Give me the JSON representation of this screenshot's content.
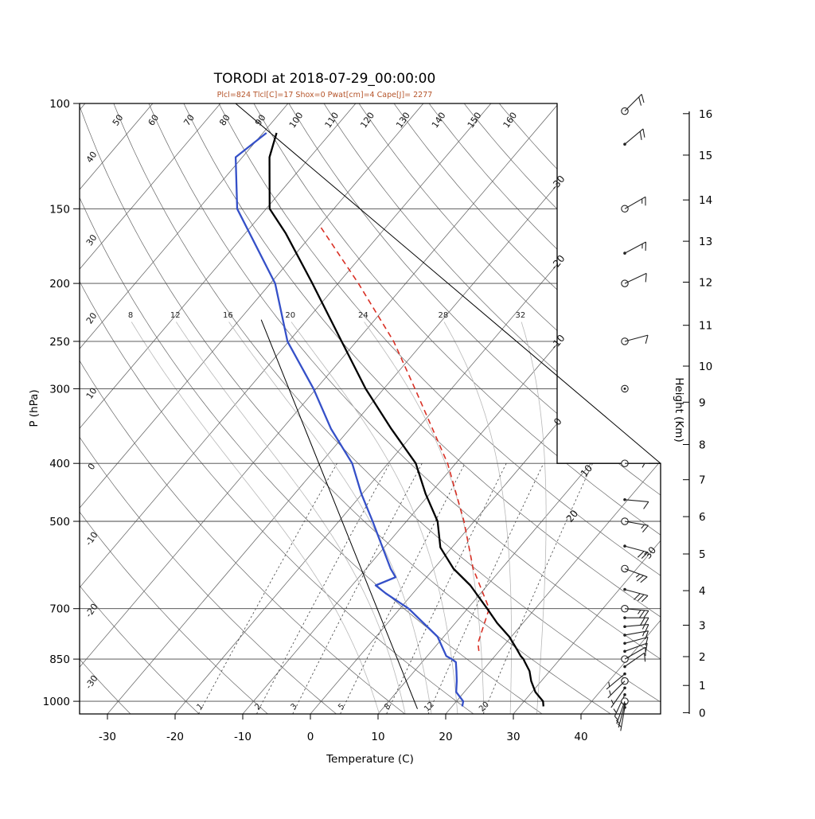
{
  "colors": {
    "temperature": "#000000",
    "dewpoint": "#3550c8",
    "parcel": "#d93025",
    "subtitle": "#b5542a",
    "background_lines": "#666666",
    "moist_adiabat": "#b8b8b8",
    "mixing": "#444444",
    "wind": "#222222",
    "axis": "#000000"
  },
  "chart_data": {
    "type": "skewt-logp",
    "title": "TORODI at 2018-07-29_00:00:00",
    "subtitle": "Plcl=824 Tlcl[C]=17 Shox=0 Pwat[cm]=4 Cape[J]= 2277",
    "xlabel": "Temperature (C)",
    "ylabel": "P (hPa)",
    "y2label": "Height (Km)",
    "pressure_range": [
      100,
      1050
    ],
    "pressure_ticks": [
      100,
      150,
      200,
      250,
      300,
      400,
      500,
      700,
      850,
      1000
    ],
    "temperature_ticks": [
      -30,
      -20,
      -10,
      0,
      10,
      20,
      30,
      40
    ],
    "height_ticks": [
      {
        "km": 16,
        "p": 104
      },
      {
        "km": 15,
        "p": 122
      },
      {
        "km": 14,
        "p": 145
      },
      {
        "km": 13,
        "p": 170
      },
      {
        "km": 12,
        "p": 199
      },
      {
        "km": 11,
        "p": 235
      },
      {
        "km": 10,
        "p": 275
      },
      {
        "km": 9,
        "p": 316
      },
      {
        "km": 8,
        "p": 372
      },
      {
        "km": 7,
        "p": 426
      },
      {
        "km": 6,
        "p": 491
      },
      {
        "km": 5,
        "p": 567
      },
      {
        "km": 4,
        "p": 653
      },
      {
        "km": 3,
        "p": 746
      },
      {
        "km": 2,
        "p": 842
      },
      {
        "km": 1,
        "p": 941
      },
      {
        "km": 0,
        "p": 1045
      }
    ],
    "background": {
      "isotherms": {
        "min": -120,
        "max": 40,
        "step": 10
      },
      "isotherm_labels": [
        -30,
        -20,
        -10,
        0,
        10,
        20,
        30
      ],
      "dry_adiabat_values": [
        -30,
        -20,
        -10,
        0,
        10,
        20,
        30,
        40,
        50,
        60,
        70,
        80,
        90,
        100,
        110,
        120,
        130,
        140,
        150,
        160
      ],
      "moist_adiabat_values": [
        8,
        12,
        16,
        20,
        24,
        28,
        32
      ],
      "mixing_ratio_values": [
        1,
        2,
        3,
        5,
        8,
        12,
        20
      ]
    },
    "series": {
      "temperature": [
        [
          1020,
          33.5
        ],
        [
          1000,
          32.8
        ],
        [
          965,
          30.5
        ],
        [
          925,
          28.5
        ],
        [
          890,
          27.0
        ],
        [
          860,
          25.2
        ],
        [
          850,
          24.6
        ],
        [
          840,
          23.8
        ],
        [
          820,
          22.5
        ],
        [
          780,
          19.7
        ],
        [
          740,
          16.2
        ],
        [
          700,
          12.9
        ],
        [
          640,
          7.5
        ],
        [
          600,
          2.9
        ],
        [
          553,
          -1.7
        ],
        [
          500,
          -5.4
        ],
        [
          450,
          -10.6
        ],
        [
          400,
          -15.9
        ],
        [
          350,
          -23.9
        ],
        [
          300,
          -32.7
        ],
        [
          250,
          -42.2
        ],
        [
          200,
          -53.8
        ],
        [
          165,
          -64.0
        ],
        [
          150,
          -69.5
        ],
        [
          123,
          -76.0
        ],
        [
          112,
          -78.0
        ]
      ],
      "dewpoint": [
        [
          1020,
          21.5
        ],
        [
          1000,
          21.0
        ],
        [
          965,
          18.8
        ],
        [
          925,
          17.5
        ],
        [
          890,
          16.2
        ],
        [
          860,
          15.0
        ],
        [
          850,
          14.0
        ],
        [
          840,
          12.8
        ],
        [
          780,
          9.1
        ],
        [
          700,
          1.3
        ],
        [
          660,
          -4.0
        ],
        [
          640,
          -6.5
        ],
        [
          620,
          -4.6
        ],
        [
          600,
          -6.4
        ],
        [
          550,
          -10.5
        ],
        [
          500,
          -15.0
        ],
        [
          450,
          -20.1
        ],
        [
          400,
          -25.3
        ],
        [
          350,
          -32.8
        ],
        [
          300,
          -40.4
        ],
        [
          250,
          -50.2
        ],
        [
          200,
          -59.3
        ],
        [
          150,
          -74.3
        ],
        [
          123,
          -81.0
        ],
        [
          112,
          -79.5
        ]
      ],
      "parcel": [
        [
          824,
          17.0
        ],
        [
          800,
          15.9
        ],
        [
          700,
          13.2
        ],
        [
          600,
          5.8
        ],
        [
          500,
          -1.5
        ],
        [
          400,
          -11.2
        ],
        [
          300,
          -25.4
        ],
        [
          250,
          -34.5
        ],
        [
          200,
          -47.0
        ],
        [
          160,
          -60.0
        ]
      ],
      "aux_line": [
        [
          1030,
          15.2
        ],
        [
          230,
          -56.8
        ]
      ]
    },
    "wind_barbs": [
      {
        "p": 103,
        "dir": 45,
        "spd": 20,
        "marker": "circle"
      },
      {
        "p": 117,
        "dir": 50,
        "spd": 20,
        "marker": "dot"
      },
      {
        "p": 150,
        "dir": 60,
        "spd": 15,
        "marker": "circle"
      },
      {
        "p": 178,
        "dir": 62,
        "spd": 15,
        "marker": "dot"
      },
      {
        "p": 200,
        "dir": 65,
        "spd": 10,
        "marker": "circle"
      },
      {
        "p": 250,
        "dir": 75,
        "spd": 10,
        "marker": "circle"
      },
      {
        "p": 300,
        "dir": 0,
        "spd": 0,
        "marker": "calm"
      },
      {
        "p": 400,
        "dir": 90,
        "spd": 5,
        "marker": "circle"
      },
      {
        "p": 460,
        "dir": 95,
        "spd": 10,
        "marker": "dot"
      },
      {
        "p": 500,
        "dir": 100,
        "spd": 15,
        "marker": "circle"
      },
      {
        "p": 550,
        "dir": 105,
        "spd": 20,
        "marker": "dot"
      },
      {
        "p": 600,
        "dir": 110,
        "spd": 25,
        "marker": "circle"
      },
      {
        "p": 650,
        "dir": 105,
        "spd": 30,
        "marker": "dot"
      },
      {
        "p": 700,
        "dir": 95,
        "spd": 25,
        "marker": "circle"
      },
      {
        "p": 725,
        "dir": 90,
        "spd": 20,
        "marker": "dot"
      },
      {
        "p": 750,
        "dir": 85,
        "spd": 15,
        "marker": "dot"
      },
      {
        "p": 775,
        "dir": 80,
        "spd": 15,
        "marker": "dot"
      },
      {
        "p": 800,
        "dir": 75,
        "spd": 10,
        "marker": "dot"
      },
      {
        "p": 825,
        "dir": 70,
        "spd": 10,
        "marker": "dot"
      },
      {
        "p": 850,
        "dir": 60,
        "spd": 10,
        "marker": "circle"
      },
      {
        "p": 875,
        "dir": 55,
        "spd": 8,
        "marker": "dot"
      },
      {
        "p": 900,
        "dir": 230,
        "spd": 6,
        "marker": "dot"
      },
      {
        "p": 925,
        "dir": 225,
        "spd": 5,
        "marker": "circle"
      },
      {
        "p": 950,
        "dir": 215,
        "spd": 5,
        "marker": "dot"
      },
      {
        "p": 975,
        "dir": 205,
        "spd": 5,
        "marker": "dot"
      },
      {
        "p": 1000,
        "dir": 200,
        "spd": 5,
        "marker": "circle"
      },
      {
        "p": 1012,
        "dir": 195,
        "spd": 4,
        "marker": "dot"
      },
      {
        "p": 1024,
        "dir": 190,
        "spd": 3,
        "marker": "dot"
      }
    ]
  }
}
